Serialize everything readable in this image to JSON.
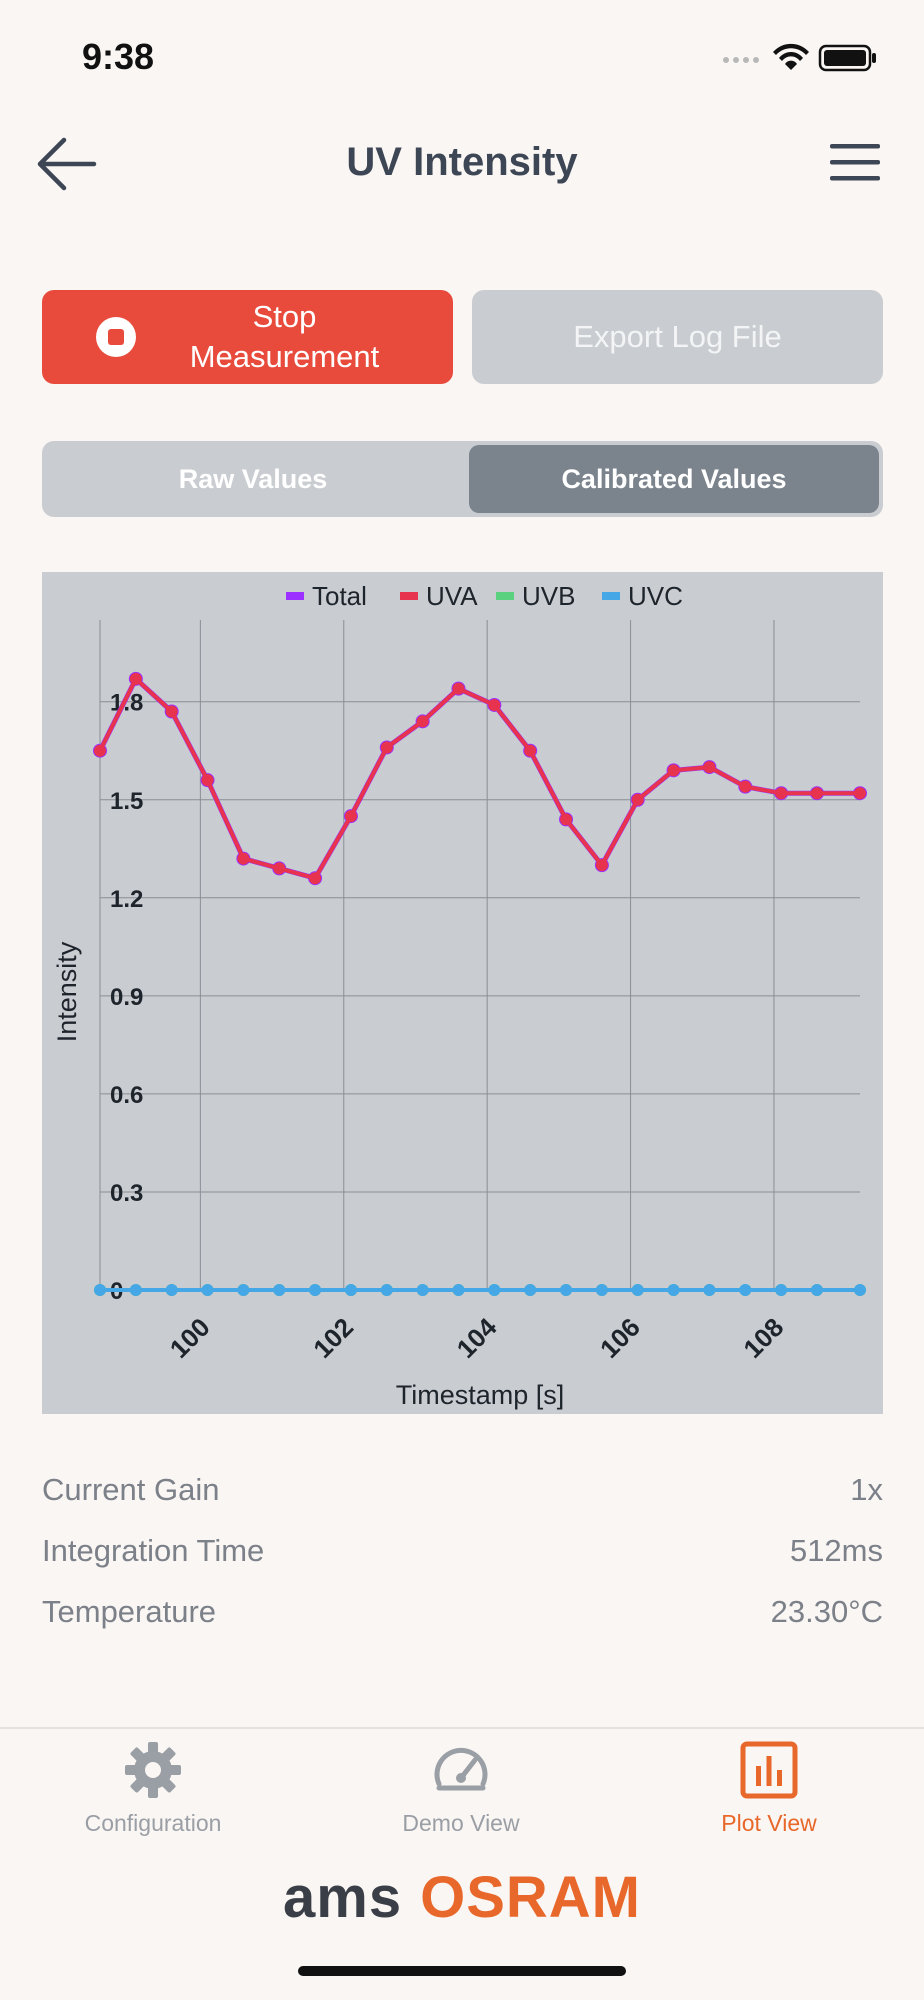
{
  "status_bar": {
    "time": "9:38"
  },
  "header": {
    "title": "UV Intensity"
  },
  "actions": {
    "stop_label": "Stop\nMeasurement",
    "export_label": "Export Log File"
  },
  "segmented": {
    "raw": "Raw Values",
    "calibrated": "Calibrated Values",
    "selected": "calibrated"
  },
  "chart_data": {
    "type": "line",
    "title": "",
    "xlabel": "Timestamp [s]",
    "ylabel": "Intensity",
    "xlim": [
      98.6,
      109.2
    ],
    "ylim": [
      0,
      2.05
    ],
    "x_ticks": [
      100,
      102,
      104,
      106,
      108
    ],
    "y_ticks": [
      0,
      0.3,
      0.6,
      0.9,
      1.2,
      1.5,
      1.8
    ],
    "legend": [
      "Total",
      "UVA",
      "UVB",
      "UVC"
    ],
    "colors": {
      "Total": "#9b30ff",
      "UVA": "#e8334f",
      "UVB": "#5ad17e",
      "UVC": "#45a7e6"
    },
    "x": [
      98.6,
      99.1,
      99.6,
      100.1,
      100.6,
      101.1,
      101.6,
      102.1,
      102.6,
      103.1,
      103.6,
      104.1,
      104.6,
      105.1,
      105.6,
      106.1,
      106.6,
      107.1,
      107.6,
      108.1,
      108.6,
      109.2
    ],
    "series": [
      {
        "name": "Total",
        "values": [
          1.65,
          1.87,
          1.77,
          1.56,
          1.32,
          1.29,
          1.26,
          1.45,
          1.66,
          1.74,
          1.84,
          1.79,
          1.65,
          1.44,
          1.3,
          1.5,
          1.59,
          1.6,
          1.54,
          1.52,
          1.52,
          1.52
        ]
      },
      {
        "name": "UVA",
        "values": [
          1.65,
          1.87,
          1.77,
          1.56,
          1.32,
          1.29,
          1.26,
          1.45,
          1.66,
          1.74,
          1.84,
          1.79,
          1.65,
          1.44,
          1.3,
          1.5,
          1.59,
          1.6,
          1.54,
          1.52,
          1.52,
          1.52
        ]
      },
      {
        "name": "UVB",
        "values": [
          0,
          0,
          0,
          0,
          0,
          0,
          0,
          0,
          0,
          0,
          0,
          0,
          0,
          0,
          0,
          0,
          0,
          0,
          0,
          0,
          0,
          0
        ]
      },
      {
        "name": "UVC",
        "values": [
          0,
          0,
          0,
          0,
          0,
          0,
          0,
          0,
          0,
          0,
          0,
          0,
          0,
          0,
          0,
          0,
          0,
          0,
          0,
          0,
          0,
          0
        ]
      }
    ]
  },
  "info": [
    {
      "label": "Current Gain",
      "value": "1x"
    },
    {
      "label": "Integration Time",
      "value": "512ms"
    },
    {
      "label": "Temperature",
      "value": "23.30°C"
    }
  ],
  "tabs": [
    {
      "label": "Configuration",
      "icon": "gear-icon"
    },
    {
      "label": "Demo View",
      "icon": "gauge-icon"
    },
    {
      "label": "Plot View",
      "icon": "bar-chart-icon",
      "active": true
    }
  ],
  "brand": {
    "left": "ams",
    "right": "OSRAM"
  }
}
